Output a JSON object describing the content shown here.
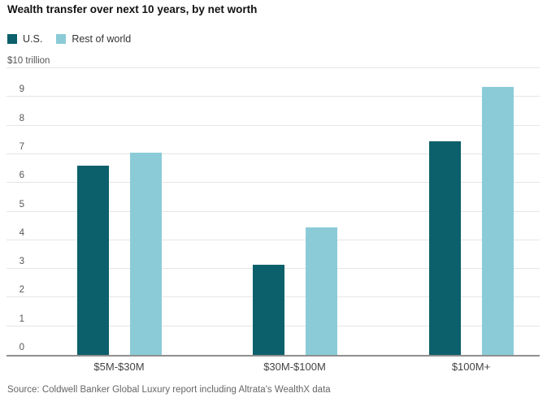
{
  "chart": {
    "title": "Wealth transfer over next 10 years, by net worth",
    "unit_label": "$10 trillion",
    "source": "Source: Coldwell Banker Global Luxury report including Altrata's WealthX data",
    "legend": {
      "us_label": "U.S.",
      "rest_of_world_label": "Rest of world"
    },
    "colors": {
      "us": "#0b606b",
      "rest_of_world": "#8bcbd8",
      "gridline": "#e5e5e5",
      "axis_line": "#8f8f8f"
    }
  },
  "chart_data": {
    "type": "bar",
    "title": "Wealth transfer over next 10 years, by net worth",
    "categories": [
      "$5M-$30M",
      "$30M-$100M",
      "$100M+"
    ],
    "series": [
      {
        "name": "U.S.",
        "values": [
          6.6,
          3.15,
          7.45
        ]
      },
      {
        "name": "Rest of world",
        "values": [
          7.05,
          4.45,
          9.35
        ]
      }
    ],
    "xlabel": "",
    "ylabel": "$10 trillion",
    "ylim": [
      0,
      10
    ],
    "yticks": [
      0,
      1,
      2,
      3,
      4,
      5,
      6,
      7,
      8,
      9,
      10
    ],
    "grid": true,
    "legend_position": "top-left",
    "source": "Source: Coldwell Banker Global Luxury report including Altrata's WealthX data"
  }
}
